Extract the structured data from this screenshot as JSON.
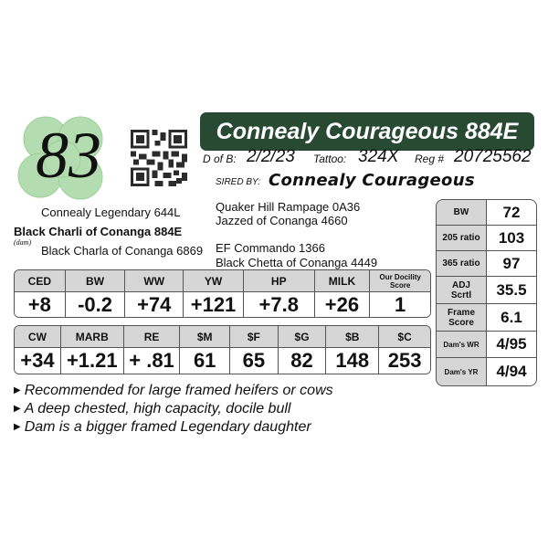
{
  "lot_number": "83",
  "title": "Connealy Courageous 884E",
  "info": {
    "dob_label": "D of B:",
    "dob": "2/2/23",
    "tattoo_label": "Tattoo:",
    "tattoo": "324X",
    "reg_label": "Reg #",
    "reg": "20725562",
    "sired_by_label": "SIRED BY:",
    "sire": "Connealy Courageous"
  },
  "pedigree": {
    "dam_sire": "Connealy Legendary 644L",
    "dam": "Black Charli of Conanga 884E",
    "dam_label": "(dam)",
    "dam_dam": "Black Charla of Conanga 6869",
    "sire_sire": "Quaker Hill Rampage 0A36",
    "sire_dam": "Jazzed of Conanga 4660",
    "dam_line_1": "EF Commando 1366",
    "dam_line_2": "Black Chetta of Conanga 4449"
  },
  "epd_row1": {
    "headers": [
      "CED",
      "BW",
      "WW",
      "YW",
      "HP",
      "MILK",
      "Our Docility Score"
    ],
    "values": [
      "+8",
      "-0.2",
      "+74",
      "+121",
      "+7.8",
      "+26",
      "1"
    ]
  },
  "epd_row2": {
    "headers": [
      "CW",
      "MARB",
      "RE",
      "$M",
      "$F",
      "$G",
      "$B",
      "$C"
    ],
    "values": [
      "+34",
      "+1.21",
      "+ .81",
      "61",
      "65",
      "82",
      "148",
      "253"
    ]
  },
  "side_stats": [
    {
      "label": "BW",
      "value": "72"
    },
    {
      "label": "205 ratio",
      "value": "103"
    },
    {
      "label": "365 ratio",
      "value": "97"
    },
    {
      "label": "ADJ Scrtl",
      "value": "35.5"
    },
    {
      "label": "Frame Score",
      "value": "6.1"
    },
    {
      "label": "Dam's WR",
      "value": "4/95"
    },
    {
      "label": "Dam's YR",
      "value": "4/94"
    }
  ],
  "bullets": [
    "Recommended for large framed heifers or cows",
    "A deep chested, high capacity, docile bull",
    "Dam is a bigger framed Legendary daughter"
  ],
  "colors": {
    "title_bar": "#284a33",
    "clover": "#a9d9a6",
    "header_cell": "#d6d6d6"
  },
  "icons": {
    "lot_badge": "four-leaf-clover-icon",
    "qr": "qr-code-icon"
  }
}
